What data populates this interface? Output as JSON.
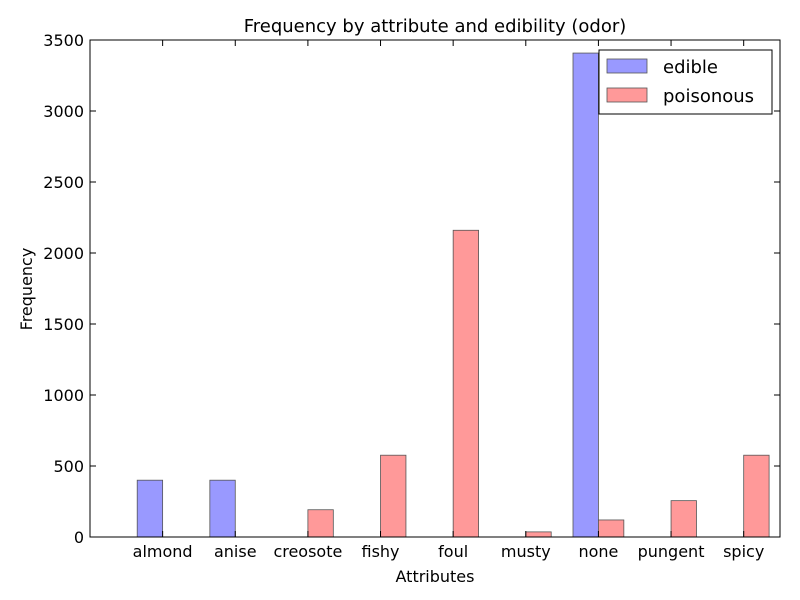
{
  "chart_data": {
    "type": "bar",
    "title": "Frequency by attribute and edibility (odor)",
    "xlabel": "Attributes",
    "ylabel": "Frequency",
    "categories": [
      "almond",
      "anise",
      "creosote",
      "fishy",
      "foul",
      "musty",
      "none",
      "pungent",
      "spicy"
    ],
    "series": [
      {
        "name": "edible",
        "color": "#9999ff",
        "values": [
          400,
          400,
          0,
          0,
          0,
          0,
          3408,
          0,
          0
        ]
      },
      {
        "name": "poisonous",
        "color": "#ff9999",
        "values": [
          0,
          0,
          192,
          576,
          2160,
          36,
          120,
          256,
          576
        ]
      }
    ],
    "ylim": [
      0,
      3500
    ],
    "yticks": [
      "0",
      "500",
      "1000",
      "1500",
      "2000",
      "2500",
      "3000",
      "3500"
    ],
    "grid": false,
    "legend_position": "top-right"
  }
}
